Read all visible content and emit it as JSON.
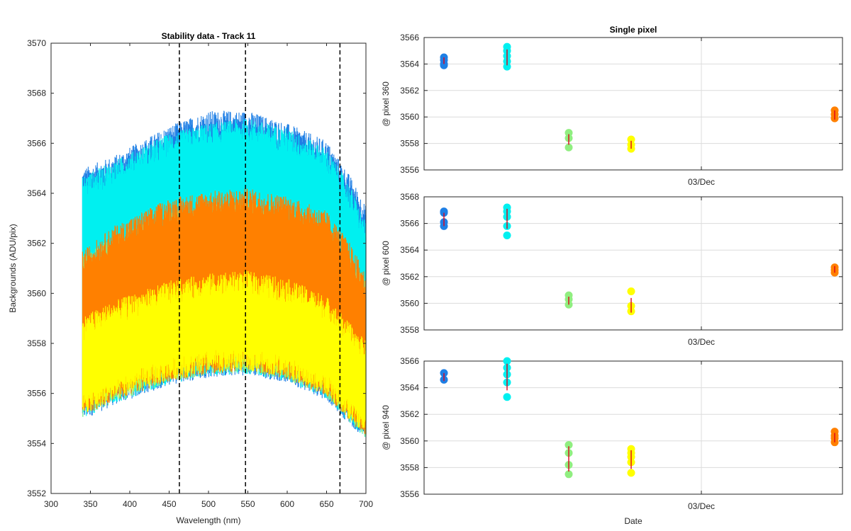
{
  "chart_data": [
    {
      "type": "line",
      "title": "Stability data - Track 11",
      "xlabel": "Wavelength (nm)",
      "ylabel": "Backgrounds (ADU/pix)",
      "xlim": [
        300,
        700
      ],
      "ylim": [
        3552,
        3570
      ],
      "xticks": [
        300,
        350,
        400,
        450,
        500,
        550,
        600,
        650,
        700
      ],
      "yticks": [
        3552,
        3554,
        3556,
        3558,
        3560,
        3562,
        3564,
        3566,
        3568,
        3570
      ],
      "grid": false,
      "data_x_range": [
        340,
        700
      ],
      "vlines": {
        "x": [
          463,
          547,
          667
        ],
        "style": "dashed",
        "color": "#000000"
      },
      "series": [
        {
          "color": "#1e7fe5",
          "upper_envelope": {
            "x": [
              340,
              380,
              450,
              500,
              550,
              600,
              650,
              680,
              700
            ],
            "y": [
              3564.5,
              3565.0,
              3566.2,
              3566.8,
              3566.8,
              3566.3,
              3565.6,
              3564.2,
              3563.0
            ]
          }
        },
        {
          "color": "#00f0f0",
          "upper_envelope": {
            "x": [
              340,
              380,
              450,
              500,
              550,
              600,
              650,
              680,
              700
            ],
            "y": [
              3564.2,
              3564.8,
              3565.9,
              3566.3,
              3566.5,
              3566.1,
              3565.3,
              3563.8,
              3562.3
            ]
          }
        },
        {
          "color": "#90ee80",
          "upper_envelope": {
            "x": [
              340,
              380,
              450,
              500,
              550,
              600,
              650,
              680,
              700
            ],
            "y": [
              3561.0,
              3561.8,
              3562.8,
              3563.1,
              3563.2,
              3562.9,
              3562.3,
              3561.0,
              3560.0
            ]
          }
        },
        {
          "color": "#ff8000",
          "upper_envelope": {
            "x": [
              340,
              380,
              450,
              500,
              550,
              600,
              650,
              680,
              700
            ],
            "y": [
              3561.2,
              3562.2,
              3563.3,
              3563.6,
              3563.7,
              3563.4,
              3562.8,
              3561.5,
              3560.3
            ]
          }
        },
        {
          "color": "#ffff00",
          "upper_envelope": {
            "x": [
              340,
              380,
              450,
              500,
              550,
              600,
              650,
              680,
              700
            ],
            "y": [
              3558.6,
              3559.2,
              3560.0,
              3560.3,
              3560.4,
              3560.1,
              3559.4,
              3558.3,
              3557.6
            ]
          }
        }
      ],
      "lower_envelope": {
        "x": [
          340,
          380,
          450,
          500,
          550,
          600,
          650,
          680,
          700
        ],
        "y": [
          3555.2,
          3555.8,
          3556.6,
          3556.9,
          3557.0,
          3556.7,
          3556.0,
          3555.0,
          3554.4
        ]
      }
    },
    {
      "type": "scatter",
      "title": "Single pixel",
      "xlabel": "",
      "ylabel": "@ pixel 360",
      "xtick_labels": [
        "03/Dec"
      ],
      "grid": true,
      "ylim": [
        3556,
        3566
      ],
      "yticks": [
        3556,
        3558,
        3560,
        3562,
        3564,
        3566
      ],
      "groups": [
        {
          "x": 1,
          "color": "#1e7fe5",
          "points": [
            3564.5,
            3564.3,
            3563.9,
            3564.0
          ],
          "errorbar": [
            3564.0,
            3564.5
          ]
        },
        {
          "x": 2,
          "color": "#00f0f0",
          "points": [
            3565.3,
            3565.0,
            3564.6,
            3564.2,
            3563.8
          ],
          "errorbar": [
            3563.9,
            3565.1
          ]
        },
        {
          "x": 3,
          "color": "#90ee80",
          "points": [
            3558.8,
            3558.4,
            3557.7
          ],
          "errorbar": [
            3557.9,
            3558.7
          ]
        },
        {
          "x": 4,
          "color": "#ffff00",
          "points": [
            3558.3,
            3557.9,
            3557.6
          ],
          "errorbar": [
            3557.6,
            3558.2
          ]
        },
        {
          "x": 5,
          "color": "#ff8000",
          "points": [
            3560.5,
            3560.2,
            3559.9
          ],
          "errorbar": [
            3559.8,
            3560.5
          ]
        }
      ]
    },
    {
      "type": "scatter",
      "title": "",
      "xlabel": "",
      "ylabel": "@ pixel 600",
      "xtick_labels": [
        "03/Dec"
      ],
      "grid": true,
      "ylim": [
        3558,
        3568
      ],
      "yticks": [
        3558,
        3560,
        3562,
        3564,
        3566,
        3568
      ],
      "groups": [
        {
          "x": 1,
          "color": "#1e7fe5",
          "points": [
            3566.9,
            3566.8,
            3566.1,
            3565.8
          ],
          "errorbar": [
            3565.8,
            3566.8
          ]
        },
        {
          "x": 2,
          "color": "#00f0f0",
          "points": [
            3567.2,
            3566.9,
            3566.5,
            3565.8,
            3565.1
          ],
          "errorbar": [
            3565.6,
            3567.1
          ]
        },
        {
          "x": 3,
          "color": "#90ee80",
          "points": [
            3560.6,
            3560.3,
            3559.9
          ],
          "errorbar": [
            3559.9,
            3560.5
          ]
        },
        {
          "x": 4,
          "color": "#ffff00",
          "points": [
            3560.9,
            3559.8,
            3559.4
          ],
          "errorbar": [
            3559.3,
            3560.4
          ]
        },
        {
          "x": 5,
          "color": "#ff8000",
          "points": [
            3562.7,
            3562.5,
            3562.3
          ],
          "errorbar": [
            3562.3,
            3562.8
          ]
        }
      ]
    },
    {
      "type": "scatter",
      "title": "",
      "xlabel": "Date",
      "ylabel": "@ pixel 940",
      "xtick_labels": [
        "03/Dec"
      ],
      "grid": true,
      "ylim": [
        3556,
        3566
      ],
      "yticks": [
        3556,
        3558,
        3560,
        3562,
        3564,
        3566
      ],
      "groups": [
        {
          "x": 1,
          "color": "#1e7fe5",
          "points": [
            3565.1,
            3564.6
          ],
          "errorbar": [
            3564.5,
            3565.1
          ]
        },
        {
          "x": 2,
          "color": "#00f0f0",
          "points": [
            3566.0,
            3565.5,
            3565.0,
            3564.4,
            3563.3
          ],
          "errorbar": [
            3563.8,
            3565.8
          ]
        },
        {
          "x": 3,
          "color": "#90ee80",
          "points": [
            3559.7,
            3559.1,
            3558.2,
            3557.5
          ],
          "errorbar": [
            3557.7,
            3559.6
          ]
        },
        {
          "x": 4,
          "color": "#ffff00",
          "points": [
            3559.4,
            3559.1,
            3558.8,
            3558.4,
            3557.6
          ],
          "errorbar": [
            3557.9,
            3559.3
          ]
        },
        {
          "x": 5,
          "color": "#ff8000",
          "points": [
            3560.7,
            3560.4,
            3560.2,
            3559.9
          ],
          "errorbar": [
            3559.9,
            3560.6
          ]
        }
      ]
    }
  ]
}
